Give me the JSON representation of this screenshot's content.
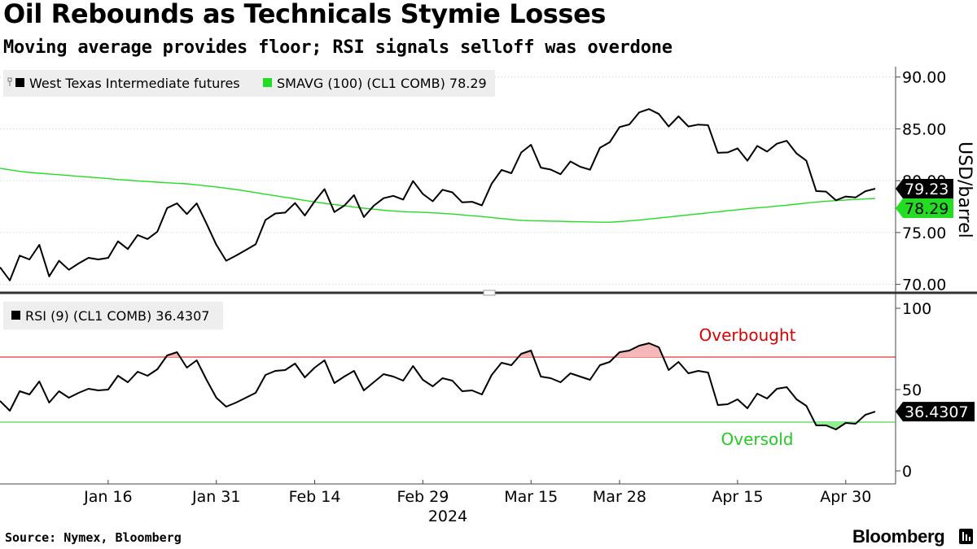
{
  "header": {
    "title": "Oil Rebounds as Technicals Stymie Losses",
    "subtitle": "Moving average provides floor; RSI signals selloff was overdone"
  },
  "footer": {
    "source": "Source: Nymex, Bloomberg",
    "brand": "Bloomberg"
  },
  "colors": {
    "price_line": "#000000",
    "sma_line": "#22dd22",
    "overbought": "#dd0000",
    "oversold": "#22cc22",
    "overbought_fill": "#f4b8b8",
    "oversold_fill": "#8ff28f",
    "legend_bg": "#eeeeee",
    "grid": "#cccccc"
  },
  "chart_data": [
    {
      "type": "line",
      "panel": "price",
      "legend": [
        {
          "label": "West Texas Intermediate futures",
          "swatch": "#000000"
        },
        {
          "label": "SMAVG (100) (CL1 COMB) 78.29",
          "swatch": "#22dd22"
        }
      ],
      "ylabel": "USD/barrel",
      "ylim": [
        69.5,
        91.0
      ],
      "yticks": [
        "90.00",
        "85.00",
        "80.00",
        "75.00",
        "70.00"
      ],
      "ytick_values": [
        90,
        85,
        80,
        75,
        70
      ],
      "last_labels": [
        {
          "text": "79.23",
          "value": 79.23,
          "color": "#000000"
        },
        {
          "text": "78.29",
          "value": 78.29,
          "color": "#22dd22"
        }
      ],
      "series": [
        {
          "name": "West Texas Intermediate futures",
          "color": "#000000",
          "values": [
            71.65,
            70.38,
            72.77,
            72.4,
            73.81,
            70.77,
            72.28,
            71.41,
            72.02,
            72.56,
            72.4,
            72.56,
            74.15,
            73.41,
            74.76,
            74.37,
            75.09,
            77.36,
            77.82,
            76.78,
            77.82,
            75.85,
            73.82,
            72.28,
            72.78,
            73.31,
            73.86,
            76.22,
            76.84,
            76.92,
            77.85,
            76.64,
            78.01,
            79.19,
            76.98,
            77.59,
            78.61,
            76.49,
            77.58,
            78.31,
            78.54,
            78.18,
            79.97,
            78.72,
            78.01,
            79.13,
            78.88,
            77.91,
            77.97,
            77.62,
            79.72,
            81.04,
            80.72,
            82.72,
            83.47,
            81.26,
            81.07,
            80.63,
            81.86,
            81.35,
            81.06,
            83.17,
            83.71,
            85.18,
            85.43,
            86.59,
            86.91,
            86.43,
            85.23,
            86.21,
            85.23,
            85.41,
            85.36,
            82.69,
            82.73,
            83.12,
            81.93,
            83.36,
            82.81,
            83.57,
            83.85,
            82.63,
            81.93,
            79.0,
            78.95,
            78.11,
            78.48,
            78.38,
            78.99,
            79.23
          ]
        },
        {
          "name": "SMAVG (100) (CL1 COMB)",
          "color": "#22dd22",
          "values": [
            81.2,
            81.05,
            80.9,
            80.8,
            80.72,
            80.65,
            80.58,
            80.5,
            80.42,
            80.35,
            80.28,
            80.2,
            80.12,
            80.05,
            79.98,
            79.92,
            79.86,
            79.8,
            79.75,
            79.7,
            79.6,
            79.5,
            79.4,
            79.28,
            79.15,
            79.0,
            78.85,
            78.7,
            78.55,
            78.4,
            78.25,
            78.1,
            77.95,
            77.82,
            77.7,
            77.58,
            77.46,
            77.35,
            77.25,
            77.15,
            77.08,
            77.02,
            76.98,
            76.95,
            76.9,
            76.85,
            76.78,
            76.7,
            76.62,
            76.55,
            76.45,
            76.35,
            76.25,
            76.18,
            76.14,
            76.12,
            76.1,
            76.08,
            76.05,
            76.04,
            76.02,
            76.0,
            76.0,
            76.05,
            76.12,
            76.2,
            76.3,
            76.4,
            76.5,
            76.6,
            76.7,
            76.8,
            76.9,
            77.0,
            77.1,
            77.2,
            77.3,
            77.38,
            77.46,
            77.55,
            77.64,
            77.74,
            77.84,
            77.94,
            78.02,
            78.08,
            78.14,
            78.19,
            78.24,
            78.29
          ]
        }
      ]
    },
    {
      "type": "line",
      "panel": "rsi",
      "legend": [
        {
          "label": "RSI (9) (CL1 COMB) 36.4307",
          "swatch": "#000000"
        }
      ],
      "ylim": [
        -8,
        107
      ],
      "yticks": [
        "100",
        "50",
        "0"
      ],
      "ytick_values": [
        100,
        50,
        0
      ],
      "overbought": {
        "level": 70,
        "label": "Overbought",
        "color": "#dd0000"
      },
      "oversold": {
        "level": 30,
        "label": "Oversold",
        "color": "#22cc22"
      },
      "last_labels": [
        {
          "text": "36.4307",
          "value": 36.4307,
          "color": "#000000"
        }
      ],
      "series": [
        {
          "name": "RSI (9) (CL1 COMB)",
          "color": "#000000",
          "values": [
            43.0,
            37.0,
            49.0,
            47.0,
            55.0,
            42.0,
            49.0,
            45.0,
            48.0,
            50.5,
            49.5,
            50.0,
            58.5,
            54.5,
            61.0,
            58.5,
            62.5,
            71.0,
            73.0,
            63.5,
            68.0,
            56.0,
            45.0,
            39.5,
            42.0,
            45.0,
            48.0,
            59.0,
            61.5,
            62.0,
            66.0,
            57.5,
            63.5,
            68.0,
            54.0,
            58.0,
            61.5,
            49.5,
            54.5,
            59.5,
            58.0,
            55.5,
            64.5,
            56.0,
            52.0,
            57.0,
            55.5,
            49.0,
            49.5,
            47.0,
            59.0,
            66.5,
            65.0,
            72.0,
            74.0,
            58.0,
            57.0,
            54.5,
            60.0,
            58.0,
            56.0,
            65.0,
            67.0,
            73.0,
            74.0,
            77.0,
            78.5,
            76.0,
            62.0,
            67.0,
            60.0,
            61.5,
            60.5,
            40.5,
            41.0,
            44.0,
            38.5,
            47.5,
            44.5,
            50.5,
            51.5,
            44.0,
            40.0,
            28.0,
            28.0,
            25.5,
            29.5,
            29.0,
            34.5,
            36.43
          ]
        }
      ]
    },
    {
      "type": "axis",
      "panel": "time",
      "xlabel": "2024",
      "xticks": [
        {
          "label": "Jan 16",
          "index": 11
        },
        {
          "label": "Jan 31",
          "index": 22
        },
        {
          "label": "Feb 14",
          "index": 32
        },
        {
          "label": "Feb 29",
          "index": 43
        },
        {
          "label": "Mar 15",
          "index": 54
        },
        {
          "label": "Mar 28",
          "index": 63
        },
        {
          "label": "Apr 15",
          "index": 75
        },
        {
          "label": "Apr 30",
          "index": 86
        }
      ]
    }
  ]
}
